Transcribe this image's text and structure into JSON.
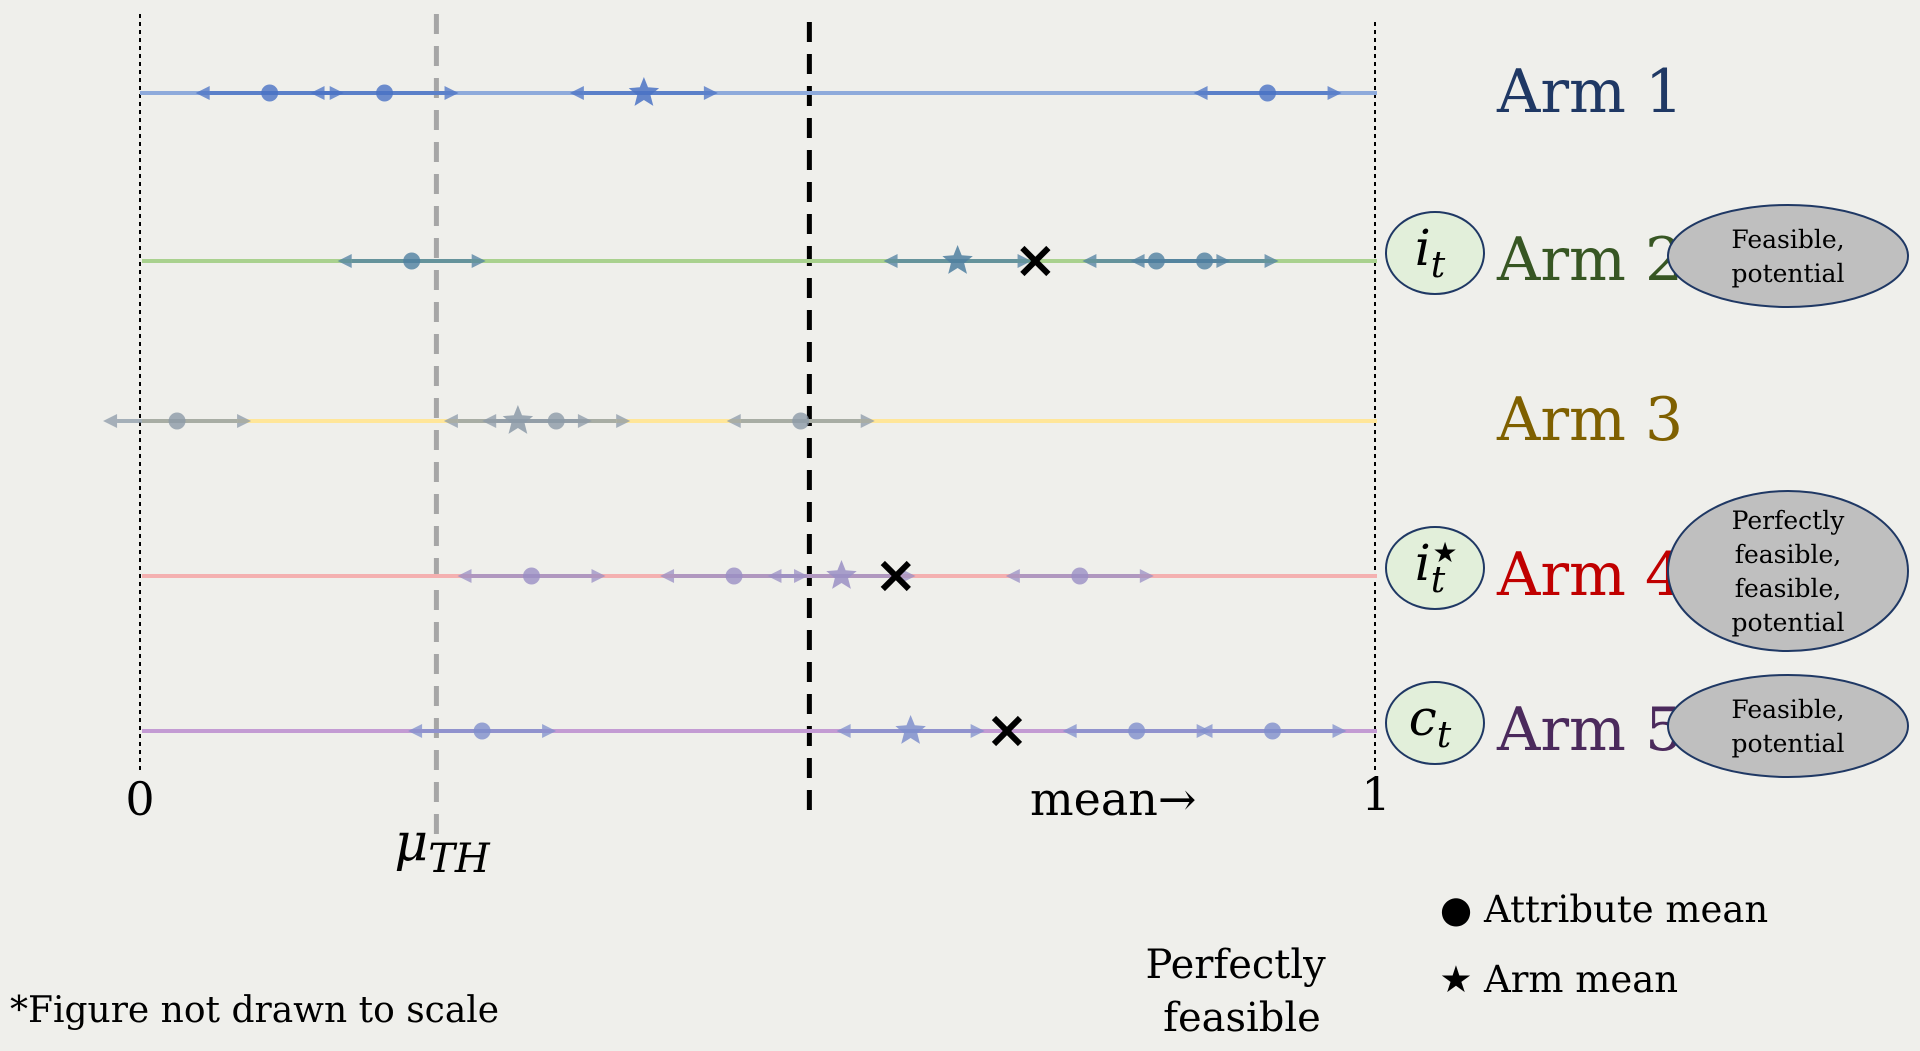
{
  "arms": [
    {
      "label": "Arm 1",
      "color": "#1f3864",
      "line_color": "#8eaadb",
      "mark_color": "#4a72c4",
      "attributes": [
        0.105,
        0.198,
        0.913
      ],
      "arm_mean": 0.408,
      "cross": null,
      "tag": null,
      "status": []
    },
    {
      "label": "Arm 2",
      "color": "#375623",
      "line_color": "#a9d18e",
      "mark_color": "#4f7fa0",
      "attributes": [
        0.22,
        0.823,
        0.862
      ],
      "arm_mean": 0.662,
      "cross": 0.725,
      "tag": {
        "base": "i",
        "sub": "t",
        "sup": ""
      },
      "status": [
        "Feasible,",
        "potential"
      ]
    },
    {
      "label": "Arm 3",
      "color": "#7f6000",
      "line_color": "#ffe699",
      "mark_color": "#8c9aa8",
      "attributes": [
        0.03,
        0.337,
        0.535
      ],
      "arm_mean": 0.306,
      "cross": null,
      "tag": null,
      "status": []
    },
    {
      "label": "Arm 4",
      "color": "#c00000",
      "line_color": "#f4b0b0",
      "mark_color": "#9a8fc4",
      "attributes": [
        0.317,
        0.481,
        0.761
      ],
      "arm_mean": 0.568,
      "cross": 0.612,
      "tag": {
        "base": "i",
        "sub": "t",
        "sup": "★"
      },
      "status": [
        "Perfectly",
        "feasible,",
        "feasible,",
        "potential"
      ]
    },
    {
      "label": "Arm 5",
      "color": "#4b2a5c",
      "line_color": "#c39bd3",
      "mark_color": "#7f8fcc",
      "attributes": [
        0.277,
        0.807,
        0.917
      ],
      "arm_mean": 0.624,
      "cross": 0.702,
      "tag": {
        "base": "c",
        "sub": "t",
        "sup": ""
      },
      "status": [
        "Feasible,",
        "potential"
      ]
    }
  ],
  "axis": {
    "min_label": "0",
    "max_label": "1",
    "direction_label": "mean→"
  },
  "threshold": {
    "base": "μ",
    "sub": "TH",
    "value": 0.24
  },
  "perfectly_feasible": {
    "value": 0.542,
    "lines": [
      "Perfectly",
      "feasible"
    ]
  },
  "legend": [
    {
      "symbol": "●",
      "label": "Attribute mean"
    },
    {
      "symbol": "★",
      "label": "Arm mean"
    }
  ],
  "note": "*Figure not drawn to scale"
}
